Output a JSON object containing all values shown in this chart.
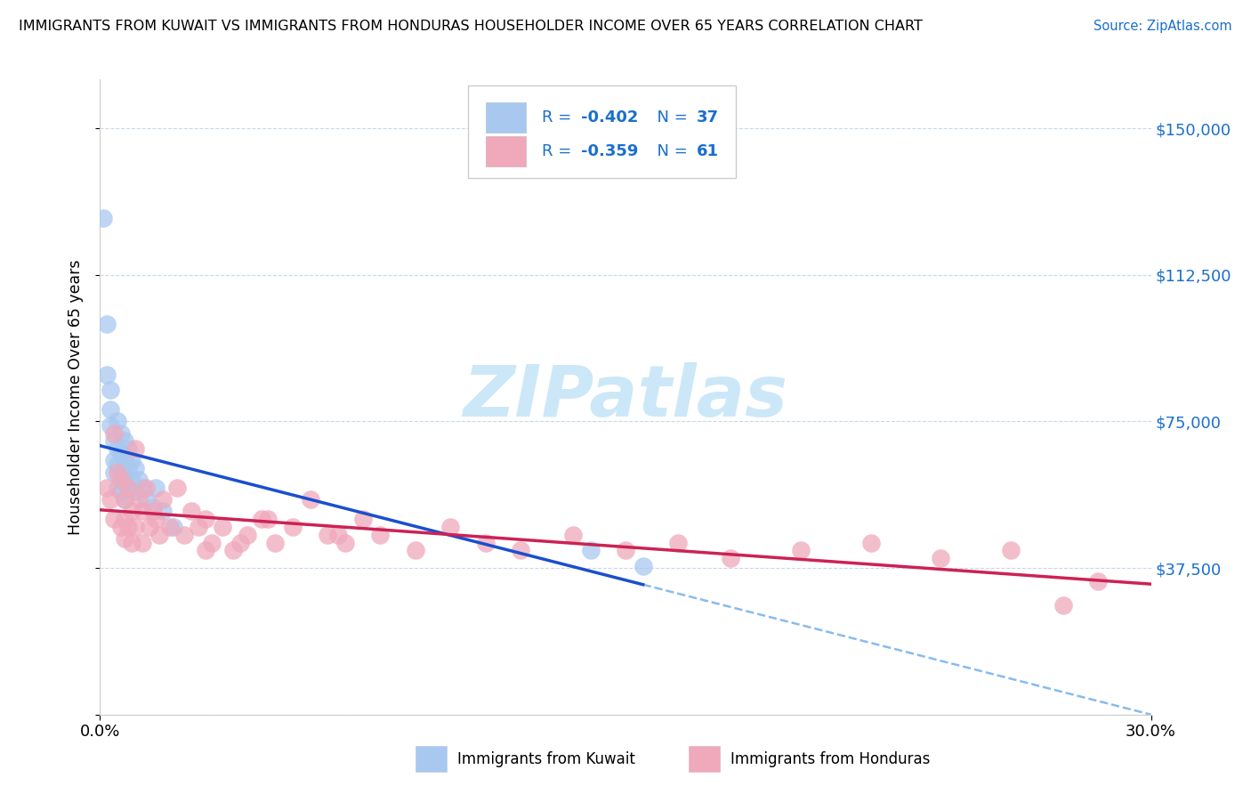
{
  "title": "IMMIGRANTS FROM KUWAIT VS IMMIGRANTS FROM HONDURAS HOUSEHOLDER INCOME OVER 65 YEARS CORRELATION CHART",
  "source": "Source: ZipAtlas.com",
  "ylabel": "Householder Income Over 65 years",
  "xlim": [
    0.0,
    0.3
  ],
  "ylim": [
    0,
    162500
  ],
  "yticks": [
    0,
    37500,
    75000,
    112500,
    150000
  ],
  "ytick_labels": [
    "",
    "$37,500",
    "$75,000",
    "$112,500",
    "$150,000"
  ],
  "xticks": [
    0.0,
    0.3
  ],
  "xtick_labels": [
    "0.0%",
    "30.0%"
  ],
  "legend_R1": "-0.402",
  "legend_N1": "37",
  "legend_R2": "-0.359",
  "legend_N2": "61",
  "kuwait_color": "#a8c8f0",
  "kuwait_line_color": "#1a4fcc",
  "kuwait_dash_color": "#88bbee",
  "honduras_color": "#f0a8bb",
  "honduras_line_color": "#cc2255",
  "text_blue": "#1a6fcc",
  "watermark_color": "#cce8f8",
  "kuwait_x": [
    0.001,
    0.002,
    0.002,
    0.003,
    0.003,
    0.003,
    0.004,
    0.004,
    0.004,
    0.005,
    0.005,
    0.005,
    0.005,
    0.006,
    0.006,
    0.006,
    0.006,
    0.007,
    0.007,
    0.007,
    0.007,
    0.008,
    0.008,
    0.008,
    0.009,
    0.009,
    0.01,
    0.01,
    0.011,
    0.012,
    0.013,
    0.015,
    0.016,
    0.018,
    0.021,
    0.14,
    0.155
  ],
  "kuwait_y": [
    127000,
    100000,
    87000,
    83000,
    78000,
    74000,
    70000,
    65000,
    62000,
    75000,
    68000,
    64000,
    58000,
    72000,
    67000,
    62000,
    57000,
    70000,
    65000,
    60000,
    55000,
    68000,
    63000,
    58000,
    65000,
    60000,
    63000,
    57000,
    60000,
    58000,
    55000,
    53000,
    58000,
    52000,
    48000,
    42000,
    38000
  ],
  "honduras_x": [
    0.002,
    0.003,
    0.004,
    0.004,
    0.005,
    0.006,
    0.006,
    0.007,
    0.007,
    0.007,
    0.008,
    0.008,
    0.009,
    0.009,
    0.01,
    0.01,
    0.011,
    0.012,
    0.012,
    0.013,
    0.014,
    0.015,
    0.016,
    0.017,
    0.018,
    0.02,
    0.022,
    0.024,
    0.026,
    0.03,
    0.032,
    0.035,
    0.038,
    0.042,
    0.046,
    0.05,
    0.055,
    0.06,
    0.065,
    0.07,
    0.075,
    0.08,
    0.09,
    0.1,
    0.11,
    0.12,
    0.135,
    0.15,
    0.165,
    0.18,
    0.2,
    0.22,
    0.24,
    0.26,
    0.275,
    0.285,
    0.03,
    0.04,
    0.028,
    0.048,
    0.068
  ],
  "honduras_y": [
    58000,
    55000,
    72000,
    50000,
    62000,
    60000,
    48000,
    55000,
    50000,
    45000,
    58000,
    48000,
    52000,
    44000,
    68000,
    48000,
    55000,
    52000,
    44000,
    58000,
    48000,
    52000,
    50000,
    46000,
    55000,
    48000,
    58000,
    46000,
    52000,
    50000,
    44000,
    48000,
    42000,
    46000,
    50000,
    44000,
    48000,
    55000,
    46000,
    44000,
    50000,
    46000,
    42000,
    48000,
    44000,
    42000,
    46000,
    42000,
    44000,
    40000,
    42000,
    44000,
    40000,
    42000,
    28000,
    34000,
    42000,
    44000,
    48000,
    50000,
    46000
  ]
}
